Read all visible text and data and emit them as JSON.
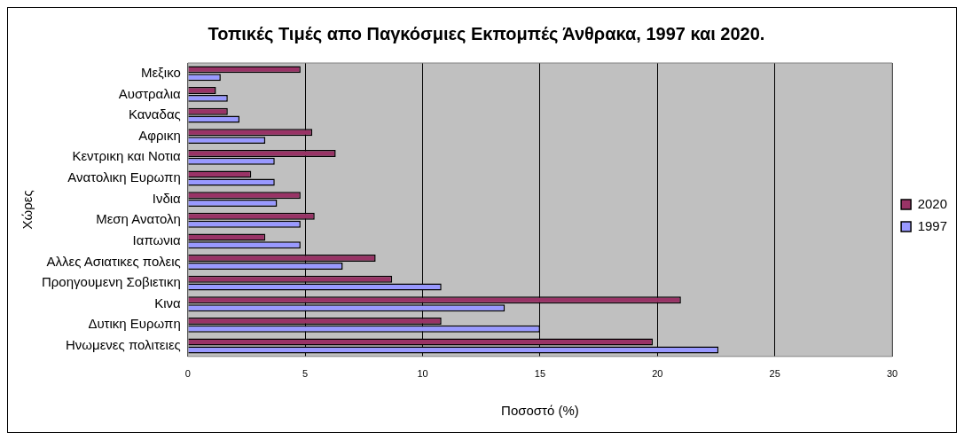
{
  "chart_data": {
    "type": "bar",
    "orientation": "horizontal",
    "title": "Τοπικές Τιμές απο Παγκόσμιες Εκπομπές Άνθρακα, 1997 και 2020.",
    "xlabel": "Ποσοστό (%)",
    "ylabel": "Χώρες",
    "categories": [
      "Μεξικο",
      "Αυστραλια",
      "Καναδας",
      "Αφρικη",
      "Κεντρικη και Νοτια",
      "Ανατολικη Ευρωπη",
      "Ινδια",
      "Μεση Ανατολη",
      "Ιαπωνια",
      "Αλλες Ασιατικες πολεις",
      "Προηγουμενη Σοβιετικη",
      "Κινα",
      "Δυτικη Ευρωπη",
      "Ηνωμενες πολιτειες"
    ],
    "series": [
      {
        "name": "2020",
        "color": "#993366",
        "values": [
          4.8,
          1.2,
          1.7,
          5.3,
          6.3,
          2.7,
          4.8,
          5.4,
          3.3,
          8.0,
          8.7,
          21.0,
          10.8,
          19.8
        ]
      },
      {
        "name": "1997",
        "color": "#9999ff",
        "values": [
          1.4,
          1.7,
          2.2,
          3.3,
          3.7,
          3.7,
          3.8,
          4.8,
          4.8,
          6.6,
          10.8,
          13.5,
          15.0,
          22.6
        ]
      }
    ],
    "xlim": [
      0,
      30
    ],
    "xticks": [
      0,
      5,
      10,
      15,
      20,
      25,
      30
    ],
    "grid": "x",
    "legend": "right"
  }
}
